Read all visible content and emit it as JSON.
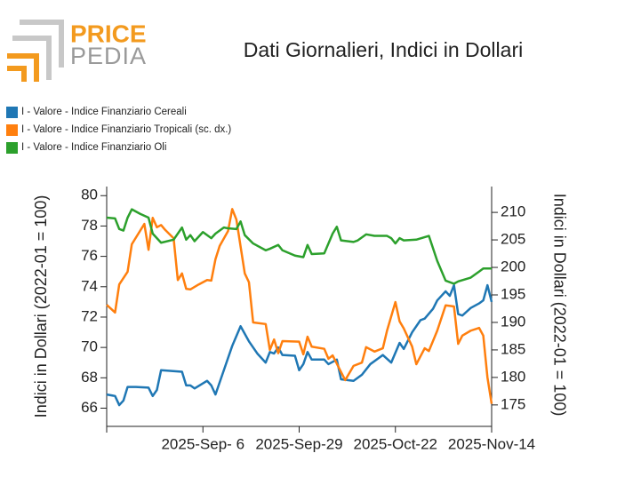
{
  "logo": {
    "top": "PRICE",
    "bottom": "PEDIA"
  },
  "chart_data": {
    "type": "line",
    "title": "Dati Giornalieri, Indici in Dollari",
    "ylabel": "Indici in Dollari (2022-01 = 100)",
    "y2label": "Indici in Dollari (2022-01 = 100)",
    "xlim": [
      "2025-08-14",
      "2025-11-14"
    ],
    "xticks": [
      {
        "value": "2025-09-06",
        "label": "2025-Sep- 6"
      },
      {
        "value": "2025-09-29",
        "label": "2025-Sep-29"
      },
      {
        "value": "2025-10-22",
        "label": "2025-Oct-22"
      },
      {
        "value": "2025-11-14",
        "label": "2025-Nov-14"
      }
    ],
    "ylim": [
      64.8,
      80.6
    ],
    "yticks": [
      66,
      68,
      70,
      72,
      74,
      76,
      78,
      80
    ],
    "y2lim": [
      171.1,
      214.7
    ],
    "y2ticks": [
      175,
      180,
      185,
      190,
      195,
      200,
      205,
      210
    ],
    "series": [
      {
        "name": "I - Valore - Indice Finanziario Cereali",
        "color": "#1f77b4",
        "x": [
          "2025-08-14",
          "2025-08-16",
          "2025-08-17",
          "2025-08-18",
          "2025-08-19",
          "2025-08-21",
          "2025-08-24",
          "2025-08-25",
          "2025-08-26",
          "2025-08-27",
          "2025-09-01",
          "2025-09-02",
          "2025-09-03",
          "2025-09-04",
          "2025-09-07",
          "2025-09-08",
          "2025-09-09",
          "2025-09-13",
          "2025-09-15",
          "2025-09-17",
          "2025-09-19",
          "2025-09-21",
          "2025-09-22",
          "2025-09-23",
          "2025-09-24",
          "2025-09-25",
          "2025-09-28",
          "2025-09-29",
          "2025-09-30",
          "2025-10-01",
          "2025-10-02",
          "2025-10-05",
          "2025-10-06",
          "2025-10-08",
          "2025-10-09",
          "2025-10-12",
          "2025-10-14",
          "2025-10-16",
          "2025-10-18",
          "2025-10-19",
          "2025-10-21",
          "2025-10-23",
          "2025-10-24",
          "2025-10-26",
          "2025-10-28",
          "2025-10-29",
          "2025-10-31",
          "2025-11-01",
          "2025-11-03",
          "2025-11-04",
          "2025-11-05",
          "2025-11-06",
          "2025-11-07",
          "2025-11-09",
          "2025-11-11",
          "2025-11-12",
          "2025-11-13",
          "2025-11-14"
        ],
        "values": [
          66.9,
          66.8,
          66.2,
          66.5,
          67.4,
          67.4,
          67.35,
          66.8,
          67.2,
          68.5,
          68.4,
          67.5,
          67.5,
          67.3,
          67.8,
          67.5,
          66.9,
          70.1,
          71.4,
          70.4,
          69.6,
          69.0,
          69.7,
          69.6,
          70.0,
          69.5,
          69.45,
          68.5,
          68.9,
          69.7,
          69.2,
          69.2,
          68.9,
          69.2,
          67.9,
          67.8,
          68.2,
          68.9,
          69.3,
          69.5,
          69.0,
          70.3,
          69.9,
          71.0,
          71.8,
          71.9,
          72.55,
          73.1,
          73.7,
          73.4,
          74.1,
          72.2,
          72.1,
          72.6,
          72.9,
          73.1,
          74.1,
          73.0
        ]
      },
      {
        "name": "I - Valore - Indice Finanziario Tropicali (sc. dx.)",
        "color": "#ff7f0e",
        "axis": "y2",
        "x": [
          "2025-08-14",
          "2025-08-16",
          "2025-08-17",
          "2025-08-19",
          "2025-08-20",
          "2025-08-23",
          "2025-08-24",
          "2025-08-25",
          "2025-08-26",
          "2025-08-27",
          "2025-08-28",
          "2025-08-30",
          "2025-08-31",
          "2025-09-01",
          "2025-09-02",
          "2025-09-03",
          "2025-09-05",
          "2025-09-07",
          "2025-09-08",
          "2025-09-09",
          "2025-09-10",
          "2025-09-12",
          "2025-09-13",
          "2025-09-14",
          "2025-09-16",
          "2025-09-17",
          "2025-09-18",
          "2025-09-21",
          "2025-09-22",
          "2025-09-23",
          "2025-09-24",
          "2025-09-25",
          "2025-09-29",
          "2025-09-30",
          "2025-10-01",
          "2025-10-02",
          "2025-10-05",
          "2025-10-06",
          "2025-10-07",
          "2025-10-10",
          "2025-10-12",
          "2025-10-14",
          "2025-10-15",
          "2025-10-17",
          "2025-10-19",
          "2025-10-20",
          "2025-10-22",
          "2025-10-23",
          "2025-10-24",
          "2025-10-26",
          "2025-10-27",
          "2025-10-29",
          "2025-10-30",
          "2025-11-01",
          "2025-11-03",
          "2025-11-05",
          "2025-11-06",
          "2025-11-07",
          "2025-11-09",
          "2025-11-11",
          "2025-11-12",
          "2025-11-13",
          "2025-11-14"
        ],
        "values": [
          193.2,
          191.8,
          196.9,
          199.2,
          204.2,
          207.9,
          203.2,
          209.0,
          207.3,
          207.7,
          206.8,
          205.3,
          197.7,
          198.9,
          196.1,
          196.0,
          196.9,
          197.7,
          197.6,
          201.5,
          203.9,
          206.6,
          210.6,
          208.7,
          198.9,
          197.3,
          190.0,
          189.7,
          185.0,
          186.9,
          184.4,
          186.6,
          186.5,
          184.2,
          187.4,
          185.6,
          185.2,
          183.4,
          184.0,
          179.5,
          182.1,
          182.7,
          185.5,
          184.7,
          185.3,
          188.5,
          193.7,
          190.2,
          188.9,
          185.6,
          182.4,
          185.3,
          184.8,
          188.5,
          193.1,
          192.9,
          186.1,
          187.6,
          188.5,
          189.0,
          187.6,
          180.0,
          175.2
        ]
      },
      {
        "name": "I - Valore - Indice Finanziario Oli",
        "color": "#2ca02c",
        "x": [
          "2025-08-14",
          "2025-08-16",
          "2025-08-17",
          "2025-08-18",
          "2025-08-19",
          "2025-08-20",
          "2025-08-22",
          "2025-08-24",
          "2025-08-25",
          "2025-08-27",
          "2025-08-30",
          "2025-09-01",
          "2025-09-02",
          "2025-09-03",
          "2025-09-04",
          "2025-09-06",
          "2025-09-08",
          "2025-09-09",
          "2025-09-11",
          "2025-09-12",
          "2025-09-14",
          "2025-09-15",
          "2025-09-16",
          "2025-09-18",
          "2025-09-21",
          "2025-09-22",
          "2025-09-24",
          "2025-09-25",
          "2025-09-28",
          "2025-09-30",
          "2025-10-01",
          "2025-10-02",
          "2025-10-05",
          "2025-10-07",
          "2025-10-08",
          "2025-10-09",
          "2025-10-12",
          "2025-10-13",
          "2025-10-15",
          "2025-10-17",
          "2025-10-20",
          "2025-10-21",
          "2025-10-22",
          "2025-10-23",
          "2025-10-24",
          "2025-10-27",
          "2025-10-30",
          "2025-11-01",
          "2025-11-03",
          "2025-11-05",
          "2025-11-06",
          "2025-11-09",
          "2025-11-11",
          "2025-11-12",
          "2025-11-14"
        ],
        "values": [
          78.55,
          78.5,
          77.8,
          77.7,
          78.55,
          79.1,
          78.8,
          78.55,
          77.5,
          76.9,
          77.1,
          77.9,
          77.1,
          77.4,
          77.0,
          77.6,
          77.2,
          77.5,
          77.9,
          77.85,
          77.8,
          78.3,
          77.4,
          76.85,
          76.4,
          76.5,
          76.75,
          76.4,
          76.05,
          75.95,
          76.75,
          76.15,
          76.2,
          77.5,
          77.95,
          77.05,
          76.95,
          77.05,
          77.45,
          77.35,
          77.35,
          77.2,
          76.85,
          77.2,
          77.05,
          77.1,
          77.35,
          75.7,
          74.4,
          74.2,
          74.35,
          74.6,
          75.0,
          75.2,
          75.2
        ]
      }
    ]
  }
}
